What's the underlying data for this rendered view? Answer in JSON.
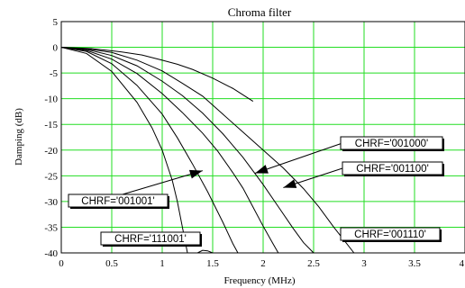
{
  "chart_data": {
    "type": "line",
    "title": "Chroma filter",
    "xlabel": "Frequency (MHz)",
    "ylabel": "Damping (dB)",
    "xlim": [
      0,
      4
    ],
    "ylim": [
      -40,
      5
    ],
    "x_ticks": [
      "0",
      "0.5",
      "1",
      "1.5",
      "2",
      "2.5",
      "3",
      "3.5",
      "4"
    ],
    "y_ticks": [
      "5",
      "0",
      "-5",
      "-10",
      "-15",
      "-20",
      "-25",
      "-30",
      "-35",
      "-40"
    ],
    "grid": true,
    "colors": {
      "grid": "#22dd22",
      "line": "#000000",
      "background": "#ffffff"
    },
    "series": [
      {
        "x": [
          0,
          0.3,
          0.6,
          0.8,
          1.0,
          1.15,
          1.3,
          1.5,
          1.7,
          1.9
        ],
        "y": [
          0,
          -0.25,
          -0.9,
          -1.5,
          -2.5,
          -3.3,
          -4.3,
          -6.0,
          -8.0,
          -10.5
        ]
      },
      {
        "x": [
          0,
          0.25,
          0.5,
          0.75,
          1.0,
          1.2,
          1.4,
          1.6,
          1.8,
          2.0,
          2.2,
          2.4,
          2.55,
          2.7,
          2.8,
          2.9,
          3.0
        ],
        "y": [
          0,
          -0.3,
          -1.0,
          -2.5,
          -4.6,
          -7.0,
          -9.5,
          -13.0,
          -16.5,
          -20.0,
          -23.5,
          -27.5,
          -31.0,
          -35.0,
          -37.5,
          -40.0,
          -42.0
        ]
      },
      {
        "x": [
          0,
          0.25,
          0.5,
          0.75,
          1.0,
          1.2,
          1.4,
          1.6,
          1.8,
          2.0,
          2.15,
          2.3,
          2.4,
          2.5
        ],
        "y": [
          0,
          -0.4,
          -1.6,
          -3.6,
          -6.6,
          -9.4,
          -12.8,
          -16.8,
          -21.4,
          -26.7,
          -31.0,
          -35.3,
          -38.0,
          -40.0
        ]
      },
      {
        "x": [
          0,
          0.25,
          0.5,
          0.75,
          1.0,
          1.2,
          1.4,
          1.55,
          1.7,
          1.8,
          1.9,
          2.0,
          2.1,
          2.15
        ],
        "y": [
          0,
          -0.6,
          -2.3,
          -5.1,
          -9.0,
          -12.7,
          -16.7,
          -20.2,
          -24.4,
          -27.4,
          -31.1,
          -34.8,
          -38.3,
          -40.0
        ]
      },
      {
        "x": [
          0,
          0.25,
          0.5,
          0.75,
          1.0,
          1.15,
          1.3,
          1.45,
          1.6,
          1.7,
          1.75
        ],
        "y": [
          0,
          -0.8,
          -3.2,
          -7.4,
          -13.0,
          -17.6,
          -22.7,
          -28.1,
          -34.0,
          -38.2,
          -40.0
        ]
      },
      {
        "x": [
          0,
          0.25,
          0.5,
          0.75,
          0.9,
          1.0,
          1.1,
          1.15,
          1.2,
          1.25
        ],
        "y": [
          0,
          -1.2,
          -4.7,
          -10.7,
          -15.7,
          -20.0,
          -25.9,
          -30.0,
          -35.0,
          -40.0
        ]
      },
      {
        "x": [
          1.35,
          1.4,
          1.45,
          1.5
        ],
        "y": [
          -40.0,
          -39.5,
          -39.6,
          -40.0
        ]
      }
    ],
    "annotations": [
      {
        "text": "CHRF='001000'",
        "arrow_to": [
          1.92,
          -24.5
        ]
      },
      {
        "text": "CHRF='001100'",
        "arrow_to": [
          2.2,
          -27.3
        ]
      },
      {
        "text": "CHRF='001001'",
        "arrow_to": [
          1.4,
          -24.0
        ]
      },
      {
        "text": "CHRF='111001'"
      },
      {
        "text": "CHRF='001110'"
      }
    ]
  }
}
